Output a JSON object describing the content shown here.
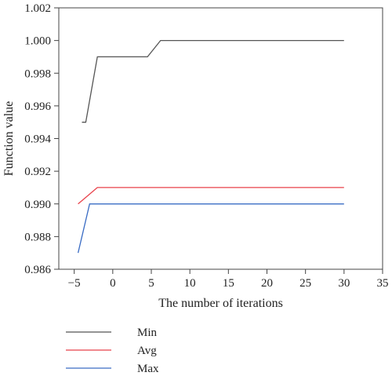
{
  "chart_data": {
    "type": "line",
    "title": "",
    "xlabel": "The number of iterations",
    "ylabel": "Function value",
    "xlim": [
      -7,
      35
    ],
    "ylim": [
      0.986,
      1.002
    ],
    "xticks": [
      -5,
      0,
      5,
      10,
      15,
      20,
      25,
      30,
      35
    ],
    "xtick_labels": [
      "−5",
      "0",
      "5",
      "10",
      "15",
      "20",
      "25",
      "30",
      "35"
    ],
    "yticks": [
      0.986,
      0.988,
      0.99,
      0.992,
      0.994,
      0.996,
      0.998,
      1.0,
      1.002
    ],
    "ytick_labels": [
      "0.986",
      "0.988",
      "0.990",
      "0.992",
      "0.994",
      "0.996",
      "0.998",
      "1.000",
      "1.002"
    ],
    "grid": false,
    "legend_position": "below-left",
    "series": [
      {
        "name": "Min",
        "color": "#555555",
        "x": [
          -4,
          -3.5,
          -2,
          4.5,
          6.2,
          30
        ],
        "y": [
          0.995,
          0.995,
          0.999,
          0.999,
          1.0,
          1.0
        ]
      },
      {
        "name": "Avg",
        "color": "#e8414a",
        "x": [
          -4.5,
          -2,
          30
        ],
        "y": [
          0.99,
          0.991,
          0.991
        ]
      },
      {
        "name": "Max",
        "color": "#3a6cc4",
        "x": [
          -4.5,
          -3,
          30
        ],
        "y": [
          0.987,
          0.99,
          0.99
        ]
      }
    ]
  }
}
